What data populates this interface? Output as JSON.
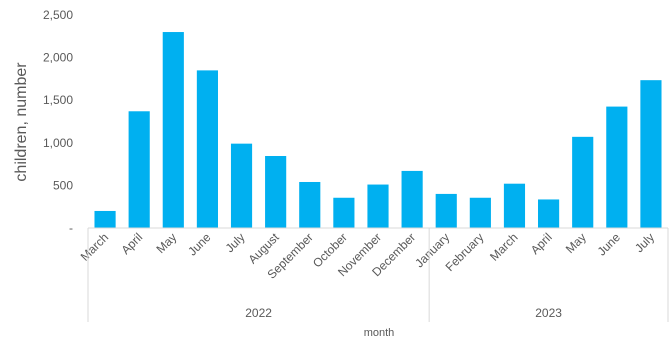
{
  "chart_data": {
    "type": "bar",
    "ylabel": "children, number",
    "xlabel": "month",
    "ylim": [
      0,
      2500
    ],
    "yticks": [
      0,
      500,
      1000,
      1500,
      2000,
      2500
    ],
    "ytick_labels": [
      "-",
      "500",
      "1,000",
      "1,500",
      "2,000",
      "2,500"
    ],
    "bar_color": "#00B0F0",
    "grid": false,
    "groups": [
      {
        "label": "2022",
        "start": 0,
        "end": 10
      },
      {
        "label": "2023",
        "start": 10,
        "end": 17
      }
    ],
    "categories": [
      "March",
      "April",
      "May",
      "June",
      "July",
      "August",
      "September",
      "October",
      "November",
      "December",
      "January",
      "February",
      "March",
      "April",
      "May",
      "June",
      "July"
    ],
    "values": [
      200,
      1370,
      2300,
      1850,
      990,
      845,
      540,
      355,
      510,
      670,
      400,
      355,
      520,
      335,
      1070,
      1425,
      1735
    ]
  }
}
